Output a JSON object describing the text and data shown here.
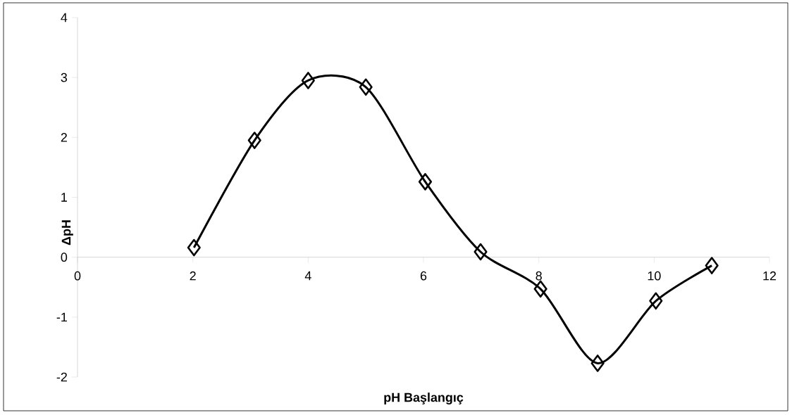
{
  "chart_data": {
    "type": "line",
    "xlabel": "pH Başlangıç",
    "ylabel": "ΔpH",
    "x": [
      2.02,
      3.07,
      4.0,
      5.0,
      6.03,
      6.99,
      8.03,
      9.02,
      10.03,
      11.0
    ],
    "values": [
      0.16,
      1.95,
      2.95,
      2.84,
      1.26,
      0.09,
      -0.53,
      -1.77,
      -0.73,
      -0.14
    ],
    "color": "#000000",
    "marker": "diamond",
    "line_style": "solid",
    "xlim": [
      0,
      12
    ],
    "ylim": [
      -2,
      4
    ],
    "xticks": [
      0,
      2,
      4,
      6,
      8,
      10,
      12
    ],
    "yticks": [
      -2,
      -1,
      0,
      1,
      2,
      3,
      4
    ]
  }
}
